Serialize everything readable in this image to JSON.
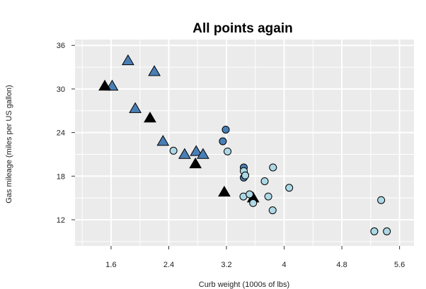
{
  "chart_data": {
    "type": "scatter",
    "title": "All points again",
    "xlabel": "Curb weight (1000s of lbs)",
    "ylabel": "Gas mileage (miles per US gallon)",
    "xlim": [
      1.1,
      5.8
    ],
    "ylim": [
      8.4,
      36.8
    ],
    "x_ticks": [
      1.6,
      2.4,
      3.2,
      4,
      4.8,
      5.6
    ],
    "x_tick_labels": [
      "1.6",
      "2.4",
      "3.2",
      "4",
      "4.8",
      "5.6"
    ],
    "y_ticks": [
      12,
      18,
      24,
      30,
      36
    ],
    "y_tick_labels": [
      "12",
      "18",
      "24",
      "30",
      "36"
    ],
    "grid": true,
    "panel_background": "#ebebeb",
    "series": [
      {
        "marker": "triangle",
        "fill": "#4a7fb5",
        "points": [
          {
            "x": 1.835,
            "y": 33.9
          },
          {
            "x": 1.615,
            "y": 30.4
          },
          {
            "x": 2.2,
            "y": 32.4
          },
          {
            "x": 1.935,
            "y": 27.3
          },
          {
            "x": 2.32,
            "y": 22.8
          },
          {
            "x": 2.62,
            "y": 21.0
          },
          {
            "x": 2.78,
            "y": 21.4
          },
          {
            "x": 2.875,
            "y": 21.0
          }
        ]
      },
      {
        "marker": "triangle",
        "fill": "#000000",
        "points": [
          {
            "x": 1.513,
            "y": 30.4
          },
          {
            "x": 2.14,
            "y": 26.0
          },
          {
            "x": 2.77,
            "y": 19.7
          },
          {
            "x": 3.17,
            "y": 15.8
          },
          {
            "x": 3.57,
            "y": 15.0
          }
        ]
      },
      {
        "marker": "circle",
        "fill": "#4a7fb5",
        "points": [
          {
            "x": 3.15,
            "y": 22.8
          },
          {
            "x": 3.19,
            "y": 24.4
          },
          {
            "x": 3.44,
            "y": 19.2
          },
          {
            "x": 3.44,
            "y": 17.8
          },
          {
            "x": 3.46,
            "y": 18.1
          }
        ]
      },
      {
        "marker": "circle",
        "fill": "#add8e6",
        "points": [
          {
            "x": 2.465,
            "y": 21.5
          },
          {
            "x": 3.215,
            "y": 21.4
          },
          {
            "x": 3.44,
            "y": 18.7
          },
          {
            "x": 3.46,
            "y": 18.1
          },
          {
            "x": 3.435,
            "y": 15.2
          },
          {
            "x": 3.52,
            "y": 15.5
          },
          {
            "x": 3.57,
            "y": 14.3
          },
          {
            "x": 3.73,
            "y": 17.3
          },
          {
            "x": 3.78,
            "y": 15.2
          },
          {
            "x": 3.84,
            "y": 13.3
          },
          {
            "x": 3.845,
            "y": 19.2
          },
          {
            "x": 4.07,
            "y": 16.4
          },
          {
            "x": 5.25,
            "y": 10.4
          },
          {
            "x": 5.424,
            "y": 10.4
          },
          {
            "x": 5.345,
            "y": 14.7
          }
        ]
      }
    ]
  }
}
